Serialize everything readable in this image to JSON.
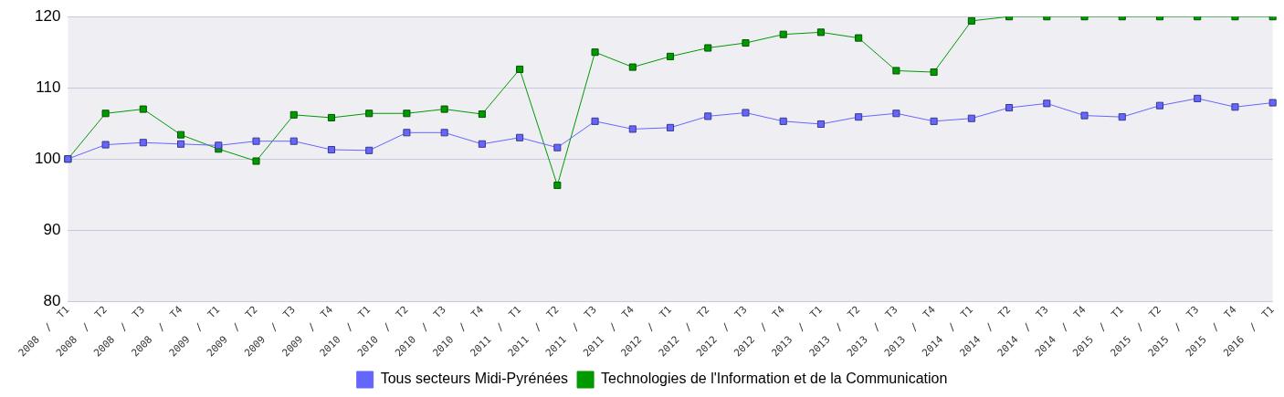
{
  "chart_data": {
    "type": "line",
    "categories": [
      "2008  /  T1",
      "2008  /  T2",
      "2008  /  T3",
      "2008  /  T4",
      "2009  /  T1",
      "2009  /  T2",
      "2009  /  T3",
      "2009  /  T4",
      "2010  /  T1",
      "2010  /  T2",
      "2010  /  T3",
      "2010  /  T4",
      "2011  /  T1",
      "2011  /  T2",
      "2011  /  T3",
      "2011  /  T4",
      "2012  /  T1",
      "2012  /  T2",
      "2012  /  T3",
      "2012  /  T4",
      "2013  /  T1",
      "2013  /  T2",
      "2013  /  T3",
      "2013  /  T4",
      "2014  /  T1",
      "2014  /  T2",
      "2014  /  T3",
      "2014  /  T4",
      "2015  /  T1",
      "2015  /  T2",
      "2015  /  T3",
      "2015  /  T4",
      "2016  /  T1"
    ],
    "series": [
      {
        "name": "Technologies de l'Information et de la Communication",
        "color": "#009900",
        "values": [
          100,
          106.4,
          107.0,
          103.4,
          101.4,
          99.7,
          106.2,
          105.8,
          106.4,
          106.4,
          107.0,
          106.3,
          112.6,
          96.3,
          115.0,
          112.9,
          114.4,
          115.6,
          116.3,
          117.5,
          117.8,
          117.0,
          112.4,
          112.2,
          119.4,
          120,
          120,
          120,
          120,
          120,
          120,
          120,
          120
        ]
      },
      {
        "name": "Tous secteurs Midi-Pyrénées",
        "color": "#6666ff",
        "values": [
          100,
          102.0,
          102.3,
          102.1,
          101.9,
          102.5,
          102.5,
          101.3,
          101.2,
          103.7,
          103.7,
          102.1,
          103.0,
          101.6,
          105.3,
          104.2,
          104.4,
          106.0,
          106.5,
          105.3,
          104.9,
          105.9,
          106.4,
          105.3,
          105.7,
          107.2,
          107.8,
          106.1,
          105.9,
          107.5,
          108.5,
          107.3,
          107.9
        ]
      }
    ],
    "ylim": [
      80,
      120
    ],
    "yticks": [
      80,
      90,
      100,
      110,
      120
    ],
    "grid": "y",
    "legend": "bottom",
    "marker": "square",
    "line_style": "solid"
  }
}
